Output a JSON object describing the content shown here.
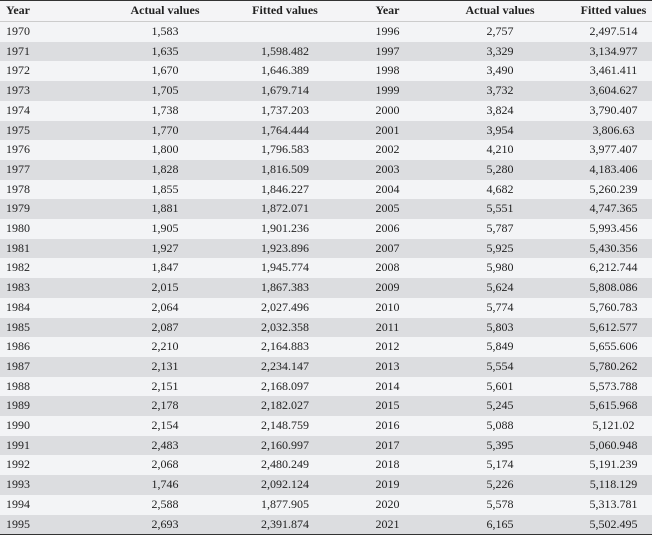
{
  "headers": [
    "Year",
    "Actual values",
    "Fitted values",
    "Year",
    "Actual values",
    "Fitted values"
  ],
  "left_rows": [
    [
      "1970",
      "1,583",
      ""
    ],
    [
      "1971",
      "1,635",
      "1,598.482"
    ],
    [
      "1972",
      "1,670",
      "1,646.389"
    ],
    [
      "1973",
      "1,705",
      "1,679.714"
    ],
    [
      "1974",
      "1,738",
      "1,737.203"
    ],
    [
      "1975",
      "1,770",
      "1,764.444"
    ],
    [
      "1976",
      "1,800",
      "1,796.583"
    ],
    [
      "1977",
      "1,828",
      "1,816.509"
    ],
    [
      "1978",
      "1,855",
      "1,846.227"
    ],
    [
      "1979",
      "1,881",
      "1,872.071"
    ],
    [
      "1980",
      "1,905",
      "1,901.236"
    ],
    [
      "1981",
      "1,927",
      "1,923.896"
    ],
    [
      "1982",
      "1,847",
      "1,945.774"
    ],
    [
      "1983",
      "2,015",
      "1,867.383"
    ],
    [
      "1984",
      "2,064",
      "2,027.496"
    ],
    [
      "1985",
      "2,087",
      "2,032.358"
    ],
    [
      "1986",
      "2,210",
      "2,164.883"
    ],
    [
      "1987",
      "2,131",
      "2,234.147"
    ],
    [
      "1988",
      "2,151",
      "2,168.097"
    ],
    [
      "1989",
      "2,178",
      "2,182.027"
    ],
    [
      "1990",
      "2,154",
      "2,148.759"
    ],
    [
      "1991",
      "2,483",
      "2,160.997"
    ],
    [
      "1992",
      "2,068",
      "2,480.249"
    ],
    [
      "1993",
      "1,746",
      "2,092.124"
    ],
    [
      "1994",
      "2,588",
      "1,877.905"
    ],
    [
      "1995",
      "2,693",
      "2,391.874"
    ]
  ],
  "right_rows": [
    [
      "1996",
      "2,757",
      "2,497.514"
    ],
    [
      "1997",
      "3,329",
      "3,134.977"
    ],
    [
      "1998",
      "3,490",
      "3,461.411"
    ],
    [
      "1999",
      "3,732",
      "3,604.627"
    ],
    [
      "2000",
      "3,824",
      "3,790.407"
    ],
    [
      "2001",
      "3,954",
      "3,806.63"
    ],
    [
      "2002",
      "4,210",
      "3,977.407"
    ],
    [
      "2003",
      "5,280",
      "4,183.406"
    ],
    [
      "2004",
      "4,682",
      "5,260.239"
    ],
    [
      "2005",
      "5,551",
      "4,747.365"
    ],
    [
      "2006",
      "5,787",
      "5,993.456"
    ],
    [
      "2007",
      "5,925",
      "5,430.356"
    ],
    [
      "2008",
      "5,980",
      "6,212.744"
    ],
    [
      "2009",
      "5,624",
      "5,808.086"
    ],
    [
      "2010",
      "5,774",
      "5,760.783"
    ],
    [
      "2011",
      "5,803",
      "5,612.577"
    ],
    [
      "2012",
      "5,849",
      "5,655.606"
    ],
    [
      "2013",
      "5,554",
      "5,780.262"
    ],
    [
      "2014",
      "5,601",
      "5,573.788"
    ],
    [
      "2015",
      "5,245",
      "5,615.968"
    ],
    [
      "2016",
      "5,088",
      "5,121.02"
    ],
    [
      "2017",
      "5,395",
      "5,060.948"
    ],
    [
      "2018",
      "5,174",
      "5,191.239"
    ],
    [
      "2019",
      "5,226",
      "5,118.129"
    ],
    [
      "2020",
      "5,578",
      "5,313.781"
    ],
    [
      "2021",
      "6,165",
      "5,502.495"
    ]
  ]
}
